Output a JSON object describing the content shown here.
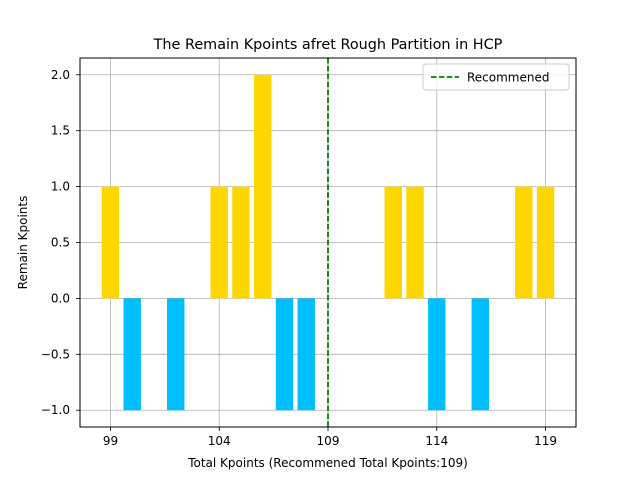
{
  "chart_data": {
    "type": "bar",
    "title": "The Remain Kpoints afret Rough Partition in HCP",
    "xlabel": "Total Kpoints (Recommened Total Kpoints:109)",
    "ylabel": "Remain Kpoints",
    "x": [
      99,
      100,
      102,
      104,
      105,
      106,
      107,
      108,
      112,
      113,
      114,
      116,
      118,
      119
    ],
    "values": [
      1,
      -1,
      -1,
      1,
      1,
      2,
      -1,
      -1,
      1,
      1,
      -1,
      -1,
      1,
      1
    ],
    "xlim": [
      97.6,
      120.4
    ],
    "ylim": [
      -1.15,
      2.15
    ],
    "xticks": [
      99,
      104,
      109,
      114,
      119
    ],
    "xtick_labels": [
      "99",
      "104",
      "109",
      "114",
      "119"
    ],
    "yticks": [
      -1.0,
      -0.5,
      0.0,
      0.5,
      1.0,
      1.5,
      2.0
    ],
    "ytick_labels": [
      "−1.0",
      "−0.5",
      "0.0",
      "0.5",
      "1.0",
      "1.5",
      "2.0"
    ],
    "grid": true,
    "positive_color": "#FFD700",
    "negative_color": "#00BFFF",
    "recommended": {
      "x": 109,
      "label": "Recommened",
      "color": "#008000",
      "style": "dashed"
    },
    "legend_placement": "top-right"
  }
}
